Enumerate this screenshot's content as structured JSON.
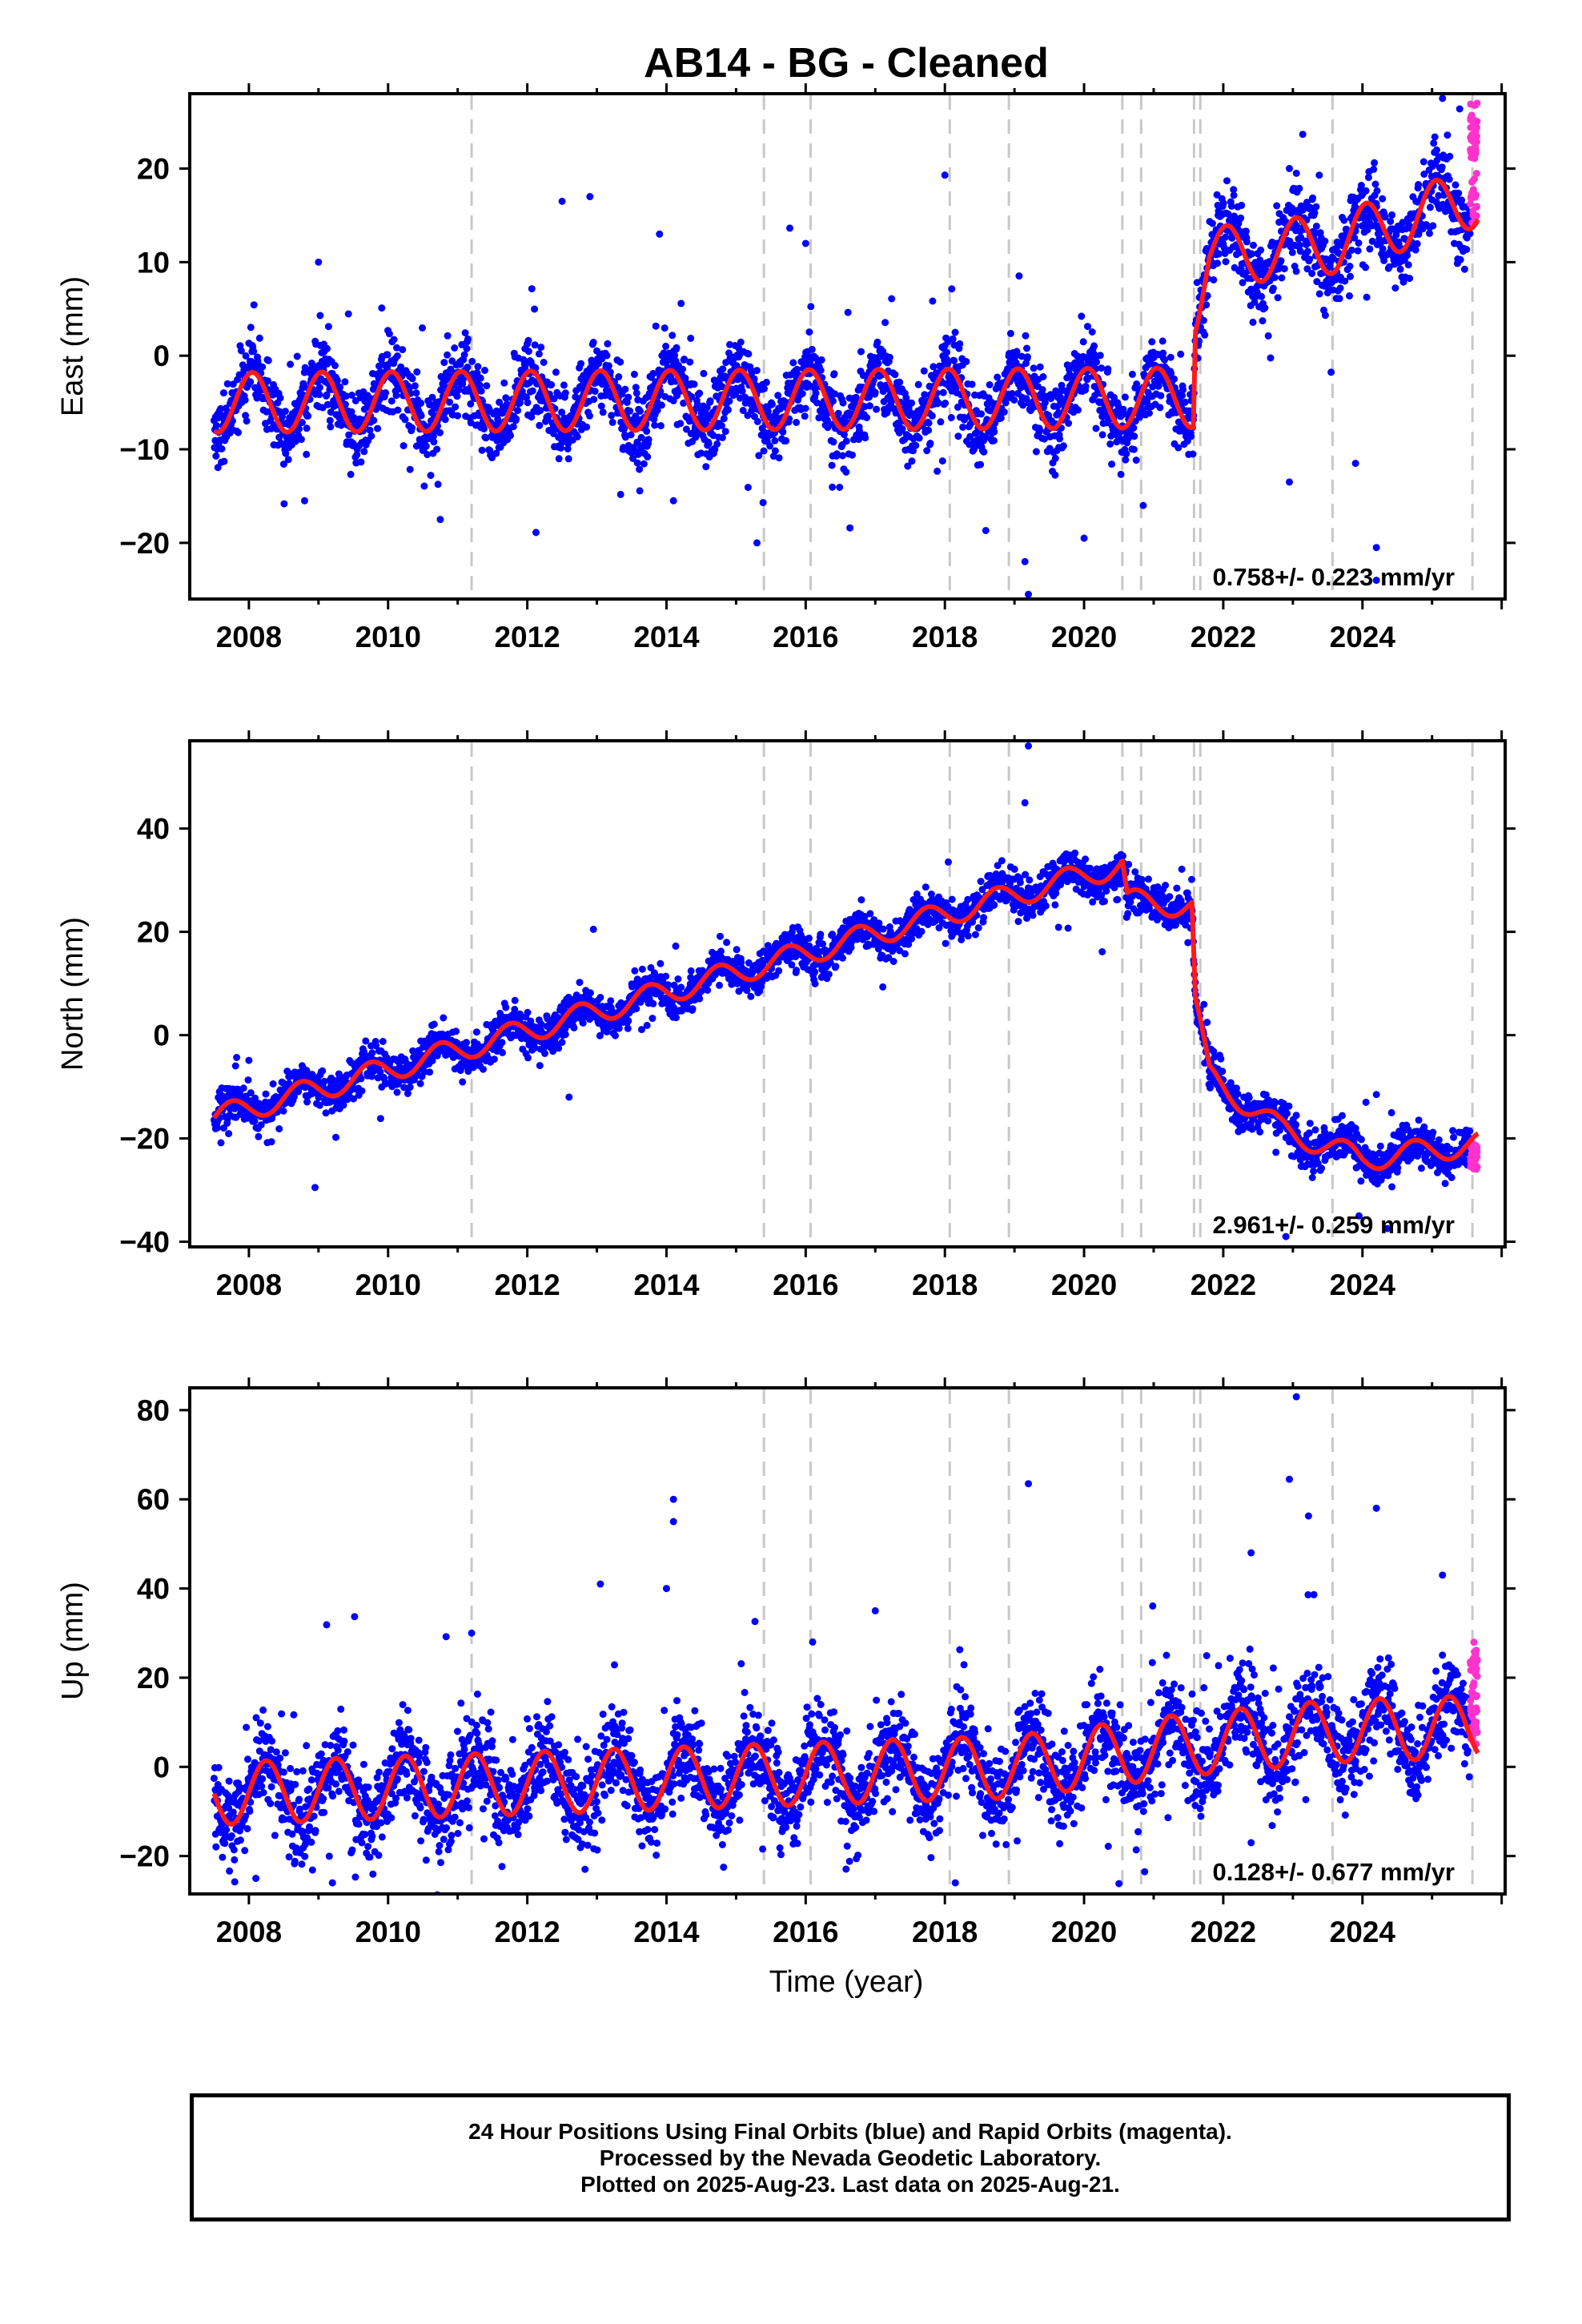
{
  "chart_data": {
    "title": "AB14  - BG - Cleaned",
    "xlabel": "Time (year)",
    "x_ticks": [
      "2008",
      "2010",
      "2012",
      "2014",
      "2016",
      "2018",
      "2020",
      "2022",
      "2024"
    ],
    "xlim": [
      2007.15,
      2026.05
    ],
    "series_legend": {
      "final": "Final Orbits (blue)",
      "rapid": "Rapid Orbits (magenta)",
      "model": "model fit (red)"
    },
    "colors": {
      "final": "#0000ff",
      "rapid": "#ff33cc",
      "model": "#ff1a1a",
      "event_lines": "#c8c8c8"
    },
    "event_lines": [
      2011.2,
      2015.4,
      2016.07,
      2018.07,
      2018.92,
      2020.55,
      2020.82,
      2021.58,
      2021.67,
      2023.57,
      2025.58
    ],
    "panels": [
      {
        "type": "scatter",
        "ylabel": "East (mm)",
        "ylim": [
          -26,
          28
        ],
        "y_ticks": [
          -20,
          -10,
          0,
          10,
          20
        ],
        "y_tick_labels": [
          "−20",
          "−10",
          "0",
          "10",
          "20"
        ],
        "rate_label": "0.758+/- 0.223 mm/yr",
        "model": {
          "knots": [
            [
              2007.5,
              -5.0
            ],
            [
              2021.57,
              -4.5
            ],
            [
              2021.6,
              5.5
            ],
            [
              2021.8,
              10.5
            ],
            [
              2023.6,
              12.0
            ],
            [
              2025.65,
              17.0
            ]
          ],
          "season_amp": 3.2,
          "season_phase": 0.2,
          "noise": 2.0
        },
        "outliers": [
          [
            2010.75,
            -17.5
          ],
          [
            2015.3,
            -20
          ],
          [
            2018.0,
            19.3
          ],
          [
            2019.2,
            -25.5
          ],
          [
            2019.15,
            -22
          ],
          [
            2020.0,
            -19.5
          ],
          [
            2020.85,
            -16
          ],
          [
            2022.95,
            -13.5
          ],
          [
            2023.3,
            15
          ],
          [
            2025.15,
            27.5
          ],
          [
            2023.05,
            19.5
          ],
          [
            2012.5,
            16.5
          ],
          [
            2012.9,
            17
          ],
          [
            2013.9,
            13
          ],
          [
            2009.0,
            10
          ],
          [
            2016.0,
            12
          ],
          [
            2014.1,
            -15.5
          ],
          [
            2008.8,
            -15.5
          ],
          [
            2023.9,
            -11.5
          ],
          [
            2024.2,
            -20.5
          ],
          [
            2024.2,
            -24
          ]
        ],
        "rapid": {
          "x_start": 2025.55,
          "x_end": 2025.65,
          "ymin": 14,
          "ymax": 27
        }
      },
      {
        "type": "scatter",
        "ylabel": "North (mm)",
        "ylim": [
          -41,
          57
        ],
        "y_ticks": [
          -40,
          -20,
          0,
          20,
          40
        ],
        "y_tick_labels": [
          "−40",
          "−20",
          "0",
          "20",
          "40"
        ],
        "rate_label": "2.961+/- 0.259 mm/yr",
        "model": {
          "knots": [
            [
              2007.5,
              -16.0
            ],
            [
              2020.55,
              33.0
            ],
            [
              2020.62,
              26.0
            ],
            [
              2021.55,
              25.0
            ],
            [
              2021.6,
              6.0
            ],
            [
              2021.8,
              -8.0
            ],
            [
              2022.8,
              -18.0
            ],
            [
              2024.0,
              -24.0
            ],
            [
              2025.65,
              -21.0
            ]
          ],
          "season_amp": 2.3,
          "season_phase": 0.5,
          "noise": 1.8
        },
        "outliers": [
          [
            2008.95,
            -29.5
          ],
          [
            2012.95,
            20.5
          ],
          [
            2012.6,
            -12
          ],
          [
            2019.2,
            56
          ],
          [
            2019.15,
            45
          ],
          [
            2022.9,
            -39
          ],
          [
            2024.2,
            -11.5
          ],
          [
            2024.05,
            -13
          ],
          [
            2013.6,
            10
          ],
          [
            2023.95,
            -35
          ]
        ],
        "rapid": {
          "x_start": 2025.55,
          "x_end": 2025.65,
          "ymin": -26,
          "ymax": -21
        }
      },
      {
        "type": "scatter",
        "ylabel": "Up (mm)",
        "ylim": [
          -28.5,
          85
        ],
        "y_ticks": [
          -20,
          0,
          20,
          40,
          60,
          80
        ],
        "y_tick_labels": [
          "−20",
          "0",
          "20",
          "40",
          "60",
          "80"
        ],
        "rate_label": "0.128+/- 0.677 mm/yr",
        "model": {
          "knots": [
            [
              2007.5,
              -6.0
            ],
            [
              2019.0,
              0.0
            ],
            [
              2021.5,
              5.0
            ],
            [
              2023.6,
              8.0
            ],
            [
              2025.65,
              9.0
            ]
          ],
          "season_amp": 7.0,
          "season_phase": 0.0,
          "noise": 5.0
        },
        "outliers": [
          [
            2014.1,
            60
          ],
          [
            2014.1,
            55
          ],
          [
            2014.0,
            40
          ],
          [
            2013.05,
            41
          ],
          [
            2019.2,
            63.5
          ],
          [
            2023.05,
            83
          ],
          [
            2022.95,
            64.5
          ],
          [
            2024.2,
            58
          ],
          [
            2022.4,
            48
          ],
          [
            2025.15,
            43
          ],
          [
            2016.1,
            28
          ],
          [
            2011.2,
            30
          ],
          [
            2017.0,
            35
          ],
          [
            2008.1,
            -25
          ],
          [
            2009.2,
            -26
          ],
          [
            2018.15,
            -26
          ],
          [
            2022.4,
            -17
          ]
        ],
        "rapid": {
          "x_start": 2025.55,
          "x_end": 2025.65,
          "ymin": 5,
          "ymax": 28
        }
      }
    ]
  },
  "footer": {
    "line1": "24 Hour Positions Using Final Orbits (blue) and Rapid Orbits (magenta).",
    "line2": "Processed by the Nevada Geodetic Laboratory.",
    "line3": "Plotted on 2025-Aug-23. Last data on 2025-Aug-21."
  }
}
